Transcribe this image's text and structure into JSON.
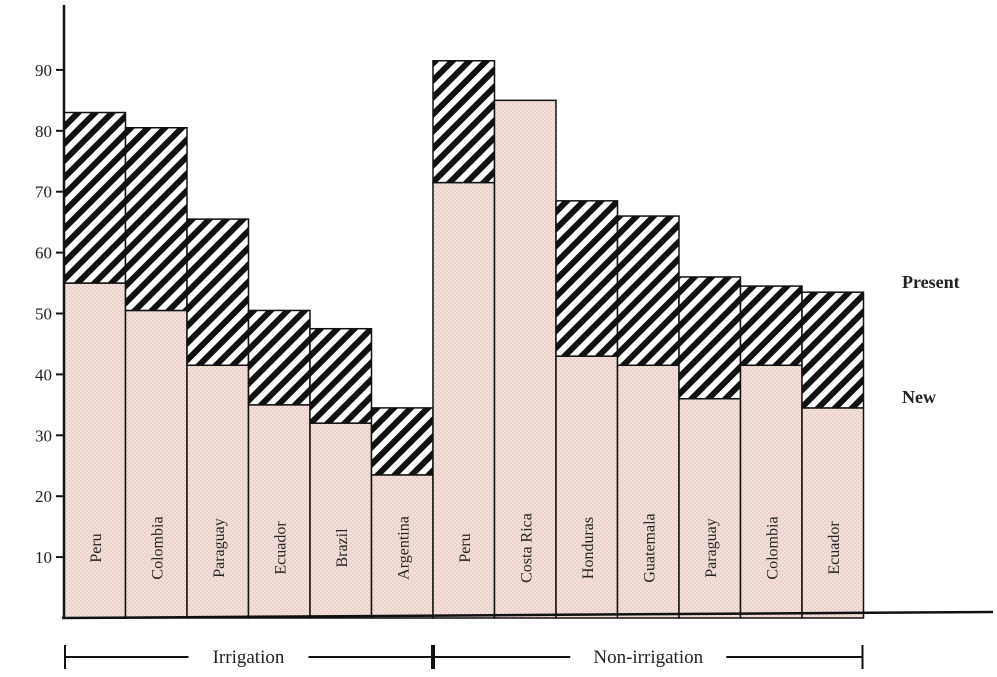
{
  "chart_data": {
    "type": "bar",
    "stacked": true,
    "yticks": [
      10,
      20,
      30,
      40,
      50,
      60,
      70,
      80,
      90
    ],
    "ylim": [
      0,
      100
    ],
    "series": [
      {
        "name": "New",
        "color": "#f1dcd5",
        "pattern": "fine-dots"
      },
      {
        "name": "Present",
        "color": "#111111",
        "pattern": "diagonal-hatch"
      }
    ],
    "groups": [
      {
        "label": "Irrigation",
        "bars": [
          {
            "label": "Peru",
            "new": 55,
            "total": 83
          },
          {
            "label": "Colombia",
            "new": 50.5,
            "total": 80.5
          },
          {
            "label": "Paraguay",
            "new": 41.5,
            "total": 65.5
          },
          {
            "label": "Ecuador",
            "new": 35,
            "total": 50.5
          },
          {
            "label": "Brazil",
            "new": 32,
            "total": 47.5
          },
          {
            "label": "Argentina",
            "new": 23.5,
            "total": 34.5
          }
        ]
      },
      {
        "label": "Non-irrigation",
        "bars": [
          {
            "label": "Peru",
            "new": 71.5,
            "total": 91.5
          },
          {
            "label": "Costa Rica",
            "new": 85,
            "total": 85
          },
          {
            "label": "Honduras",
            "new": 43,
            "total": 68.5
          },
          {
            "label": "Guatemala",
            "new": 41.5,
            "total": 66
          },
          {
            "label": "Paraguay",
            "new": 36,
            "total": 56
          },
          {
            "label": "Colombia",
            "new": 41.5,
            "total": 54.5
          },
          {
            "label": "Ecuador",
            "new": 34.5,
            "total": 53.5
          }
        ]
      }
    ]
  }
}
